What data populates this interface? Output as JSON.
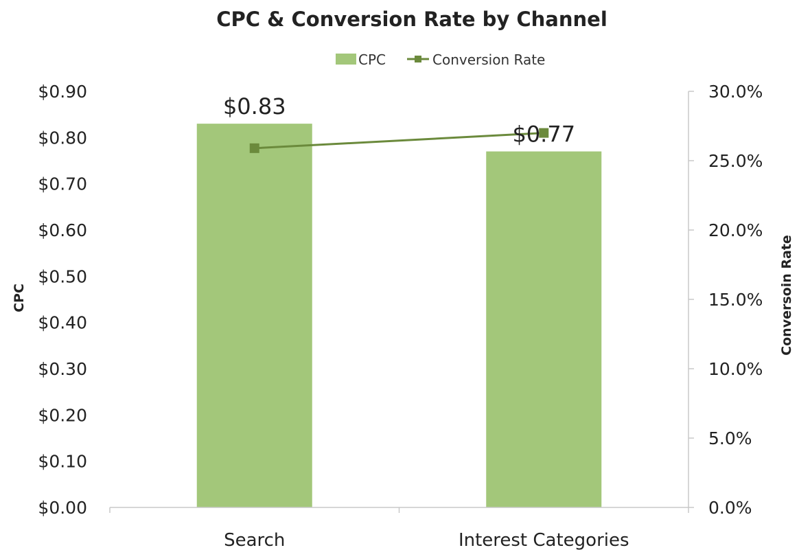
{
  "chart_data": {
    "type": "bar",
    "title": "CPC & Conversion Rate by Channel",
    "categories": [
      "Search",
      "Interest Categories"
    ],
    "series": [
      {
        "name": "CPC",
        "type": "bar",
        "axis": "left",
        "values": [
          0.83,
          0.77
        ],
        "data_labels": [
          "$0.83",
          "$0.77"
        ],
        "color": "#a3c77a"
      },
      {
        "name": "Conversion Rate",
        "type": "line",
        "axis": "right",
        "values": [
          0.259,
          0.27
        ],
        "color": "#6b8a3c"
      }
    ],
    "ylabel": "CPC",
    "y2label": "Conversoin Rate",
    "ylim": [
      0,
      0.9
    ],
    "y2lim": [
      0,
      0.3
    ],
    "yticks": [
      "$0.00",
      "$0.10",
      "$0.20",
      "$0.30",
      "$0.40",
      "$0.50",
      "$0.60",
      "$0.70",
      "$0.80",
      "$0.90"
    ],
    "y2ticks": [
      "0.0%",
      "5.0%",
      "10.0%",
      "15.0%",
      "20.0%",
      "25.0%",
      "30.0%"
    ],
    "legend_position": "top-center",
    "grid": false
  }
}
